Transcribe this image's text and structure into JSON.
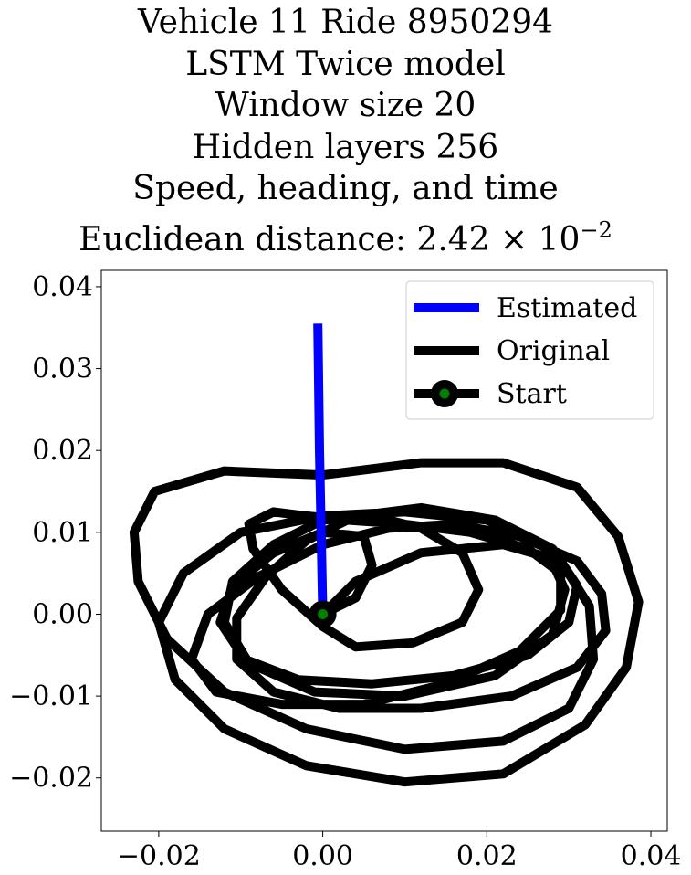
{
  "chart_data": {
    "type": "line",
    "title_lines": [
      "Vehicle 11 Ride 8950294",
      "LSTM Twice model",
      "Window size 20",
      "Hidden layers 256",
      "Speed, heading, and time",
      "Euclidean distance: 2.42 × 10",
      "−2"
    ],
    "xlabel": "",
    "ylabel": "",
    "xlim": [
      -0.027,
      0.042
    ],
    "ylim": [
      -0.0265,
      0.042
    ],
    "xticks": [
      {
        "value": -0.02,
        "label": "−0.02"
      },
      {
        "value": 0.0,
        "label": "0.00"
      },
      {
        "value": 0.02,
        "label": "0.02"
      },
      {
        "value": 0.04,
        "label": "0.04"
      }
    ],
    "yticks": [
      {
        "value": 0.04,
        "label": "0.04"
      },
      {
        "value": 0.03,
        "label": "0.03"
      },
      {
        "value": 0.02,
        "label": "0.02"
      },
      {
        "value": 0.01,
        "label": "0.01"
      },
      {
        "value": 0.0,
        "label": "0.00"
      },
      {
        "value": -0.01,
        "label": "−0.01"
      },
      {
        "value": -0.02,
        "label": "−0.02"
      }
    ],
    "grid": false,
    "legend_position": "top-right",
    "series": [
      {
        "name": "Estimated",
        "color": "#0000ff",
        "x": [
          0.0,
          -0.0004,
          -0.0006
        ],
        "y": [
          0.0,
          0.02,
          0.0355
        ]
      },
      {
        "name": "Original",
        "color": "#000000",
        "x": [
          0.0,
          0.004,
          0.012,
          0.022,
          0.029,
          0.0325,
          0.033,
          0.03,
          0.022,
          0.01,
          -0.002,
          -0.012,
          -0.019,
          -0.0225,
          -0.023,
          -0.0205,
          -0.012,
          0.0,
          0.012,
          0.022,
          0.031,
          0.036,
          0.0385,
          0.037,
          0.032,
          0.022,
          0.01,
          -0.002,
          -0.012,
          -0.018,
          -0.02,
          -0.017,
          -0.01,
          0.0,
          0.01,
          0.02,
          0.027,
          0.0295,
          0.028,
          0.021,
          0.01,
          -0.001,
          -0.009,
          -0.012,
          -0.011,
          -0.006,
          0.0,
          0.006,
          0.012,
          0.017,
          0.019,
          0.017,
          0.011,
          0.004,
          0.0,
          -0.005,
          -0.0085,
          -0.009,
          -0.006,
          -0.002,
          0.003,
          0.01,
          0.018,
          0.025,
          0.029,
          0.029,
          0.024,
          0.015,
          0.005,
          -0.005,
          -0.013,
          -0.016,
          -0.014,
          -0.008,
          0.0,
          0.008,
          0.016,
          0.024,
          0.031,
          0.034,
          0.0345,
          0.031,
          0.023,
          0.012,
          0.002,
          -0.006,
          -0.0105,
          -0.0105,
          -0.007,
          -0.002,
          0.004,
          0.012,
          0.021,
          0.028,
          0.031,
          0.03,
          0.025,
          0.016,
          0.006,
          -0.003,
          -0.0095,
          -0.0125,
          -0.011,
          -0.006,
          0.0,
          0.005,
          0.006,
          0.004,
          0.0
        ],
        "y": [
          0.0,
          0.004,
          0.0075,
          0.0085,
          0.0065,
          0.001,
          -0.0055,
          -0.0115,
          -0.0155,
          -0.0165,
          -0.014,
          -0.0095,
          -0.003,
          0.004,
          0.01,
          0.015,
          0.0175,
          0.017,
          0.0185,
          0.0185,
          0.0155,
          0.0095,
          0.0015,
          -0.0065,
          -0.0135,
          -0.0195,
          -0.0205,
          -0.0185,
          -0.014,
          -0.008,
          -0.001,
          0.005,
          0.01,
          0.012,
          0.0125,
          0.0115,
          0.0085,
          0.003,
          -0.0025,
          -0.0075,
          -0.01,
          -0.0095,
          -0.006,
          -0.001,
          0.004,
          0.0085,
          0.0115,
          0.012,
          0.0105,
          0.0075,
          0.003,
          -0.001,
          -0.0035,
          -0.004,
          -0.0015,
          0.003,
          0.008,
          0.011,
          0.0125,
          0.012,
          0.0115,
          0.011,
          0.01,
          0.008,
          0.005,
          0.0005,
          -0.0045,
          -0.0085,
          -0.011,
          -0.011,
          -0.0095,
          -0.0055,
          0.0,
          0.0045,
          0.0085,
          0.0105,
          0.011,
          0.0095,
          0.0065,
          0.0025,
          -0.002,
          -0.0065,
          -0.01,
          -0.0115,
          -0.0115,
          -0.0095,
          -0.0055,
          -0.0005,
          0.0045,
          0.009,
          0.012,
          0.013,
          0.0115,
          0.008,
          0.0035,
          -0.001,
          -0.005,
          -0.0075,
          -0.0085,
          -0.008,
          -0.0055,
          -0.001,
          0.0035,
          0.0075,
          0.01,
          0.0095,
          0.006,
          0.002,
          0.0
        ]
      }
    ],
    "start_marker": {
      "name": "Start",
      "x": 0.0,
      "y": 0.0,
      "fill": "#008000",
      "edge": "#000000"
    }
  }
}
